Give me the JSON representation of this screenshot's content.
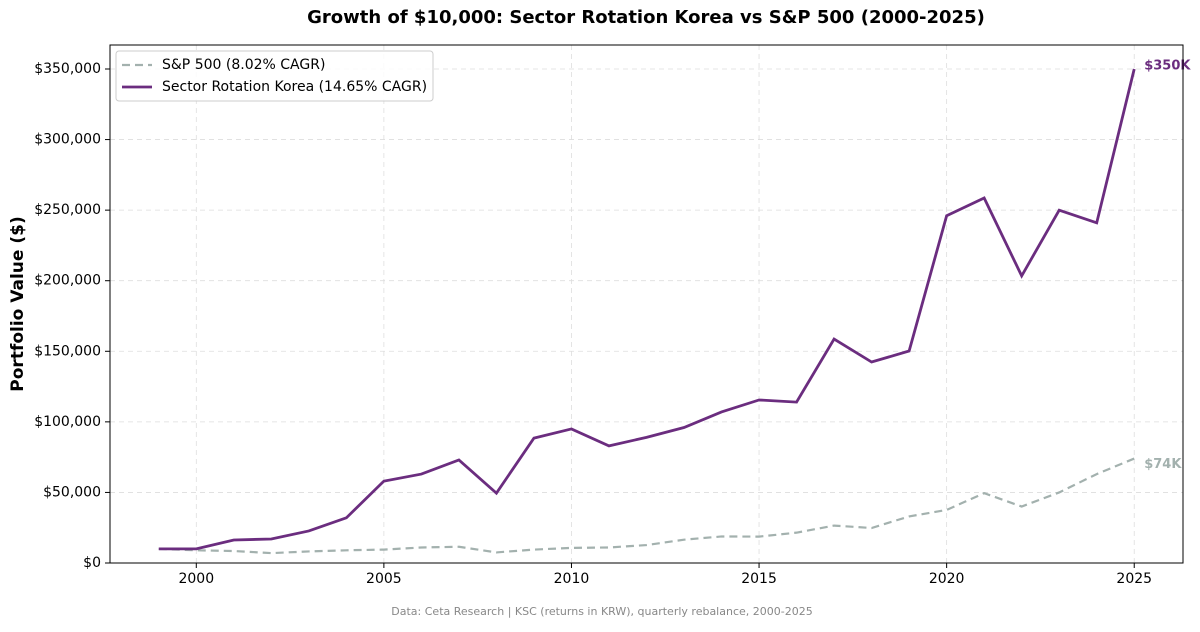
{
  "chart_data": {
    "type": "line",
    "title": "Growth of $10,000: Sector Rotation Korea vs S&P 500 (2000-2025)",
    "ylabel": "Portfolio Value ($)",
    "source": "Data: Ceta Research | KSC (returns in KRW), quarterly rebalance, 2000-2025",
    "x": [
      1999,
      2000,
      2001,
      2002,
      2003,
      2004,
      2005,
      2006,
      2007,
      2008,
      2009,
      2010,
      2011,
      2012,
      2013,
      2014,
      2015,
      2016,
      2017,
      2018,
      2019,
      2020,
      2021,
      2022,
      2023,
      2024,
      2025
    ],
    "series": [
      {
        "name": "S&P 500 (8.02% CAGR)",
        "color": "#a3b1ae",
        "dashed": true,
        "end_label": "$74K",
        "values": [
          10000,
          9000,
          8500,
          7000,
          8200,
          9000,
          9500,
          11000,
          11500,
          7500,
          9500,
          10700,
          11000,
          12700,
          16500,
          18800,
          18700,
          21500,
          26500,
          24800,
          33000,
          37600,
          49500,
          40000,
          50000,
          63000,
          74000
        ]
      },
      {
        "name": "Sector Rotation Korea (14.65% CAGR)",
        "color": "#6b2d7f",
        "dashed": false,
        "end_label": "$350K",
        "values": [
          10000,
          10000,
          16300,
          17000,
          22700,
          32000,
          58000,
          63000,
          73000,
          49500,
          88500,
          95000,
          83000,
          89000,
          96000,
          107000,
          115500,
          114000,
          158700,
          142400,
          150200,
          246000,
          258600,
          203400,
          250000,
          241000,
          350000
        ]
      }
    ],
    "xlim": [
      1997.7,
      2026.3
    ],
    "ylim": [
      0,
      367000
    ],
    "xticks": [
      2000,
      2005,
      2010,
      2015,
      2020,
      2025
    ],
    "yticks": [
      {
        "value": 0,
        "label": "$0"
      },
      {
        "value": 50000,
        "label": "$50,000"
      },
      {
        "value": 100000,
        "label": "$100,000"
      },
      {
        "value": 150000,
        "label": "$150,000"
      },
      {
        "value": 200000,
        "label": "$200,000"
      },
      {
        "value": 250000,
        "label": "$250,000"
      },
      {
        "value": 300000,
        "label": "$300,000"
      },
      {
        "value": 350000,
        "label": "$350,000"
      }
    ],
    "grid": true,
    "legend": "upper-left"
  }
}
